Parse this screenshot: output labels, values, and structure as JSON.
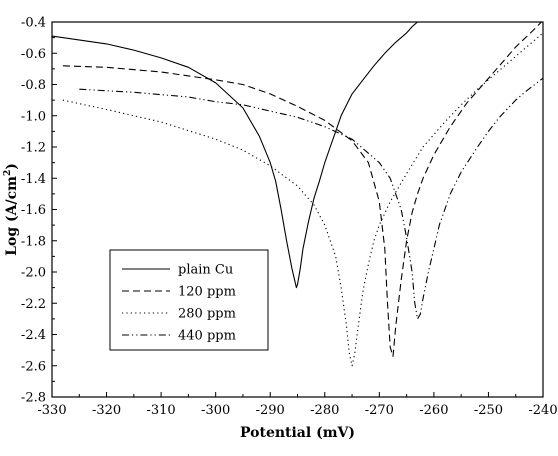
{
  "chart_data": {
    "type": "line",
    "title": "",
    "xlabel": "Potential (mV)",
    "ylabel": "Log (A/cm",
    "ylabel_sup": "2",
    "ylabel_close": ")",
    "xlim": [
      -330,
      -240
    ],
    "ylim": [
      -2.8,
      -0.4
    ],
    "x_ticks": [
      -330,
      -320,
      -310,
      -300,
      -290,
      -280,
      -270,
      -260,
      -250,
      -240
    ],
    "y_ticks": [
      -0.4,
      -0.6,
      -0.8,
      -1.0,
      -1.2,
      -1.4,
      -1.6,
      -1.8,
      -2.0,
      -2.2,
      -2.4,
      -2.6,
      -2.8
    ],
    "x_tick_labels": [
      "-330",
      "-320",
      "-310",
      "-300",
      "-290",
      "-280",
      "-270",
      "-260",
      "-250",
      "-240"
    ],
    "y_tick_labels": [
      "-0.4",
      "-0.6",
      "-0.8",
      "-1.0",
      "-1.2",
      "-1.4",
      "-1.6",
      "-1.8",
      "-2.0",
      "-2.2",
      "-2.4",
      "-2.6",
      "-2.8"
    ],
    "grid": false,
    "legend_position": "bottom-left",
    "series": [
      {
        "name": "plain Cu",
        "dash": "solid",
        "x": [
          -330,
          -320,
          -315,
          -310,
          -305,
          -300,
          -295,
          -292,
          -290,
          -289,
          -288,
          -287,
          -286,
          -285.2,
          -285,
          -284.5,
          -284,
          -283,
          -282,
          -281,
          -280,
          -279,
          -278,
          -277,
          -276,
          -275,
          -273,
          -271,
          -269,
          -267,
          -265,
          -264,
          -263,
          -262
        ],
        "y": [
          -0.49,
          -0.54,
          -0.58,
          -0.63,
          -0.69,
          -0.79,
          -0.95,
          -1.13,
          -1.3,
          -1.42,
          -1.6,
          -1.8,
          -1.98,
          -2.1,
          -2.08,
          -1.98,
          -1.85,
          -1.68,
          -1.53,
          -1.42,
          -1.3,
          -1.2,
          -1.1,
          -1.0,
          -0.93,
          -0.86,
          -0.77,
          -0.68,
          -0.6,
          -0.53,
          -0.47,
          -0.43,
          -0.4,
          -0.38
        ]
      },
      {
        "name": "120 ppm",
        "dash": "dashed",
        "x": [
          -328,
          -320,
          -310,
          -300,
          -295,
          -290,
          -285,
          -280,
          -275,
          -272,
          -270,
          -269,
          -268.5,
          -268,
          -267.5,
          -267,
          -266,
          -265,
          -264,
          -263,
          -262,
          -260,
          -257,
          -254,
          -251,
          -248,
          -245,
          -242,
          -240
        ],
        "y": [
          -0.68,
          -0.69,
          -0.72,
          -0.77,
          -0.8,
          -0.86,
          -0.94,
          -1.03,
          -1.16,
          -1.3,
          -1.55,
          -1.85,
          -2.2,
          -2.48,
          -2.54,
          -2.35,
          -2.05,
          -1.8,
          -1.62,
          -1.5,
          -1.4,
          -1.25,
          -1.07,
          -0.92,
          -0.8,
          -0.68,
          -0.56,
          -0.46,
          -0.39
        ]
      },
      {
        "name": "280 ppm",
        "dash": "dotted",
        "x": [
          -328,
          -320,
          -310,
          -300,
          -295,
          -290,
          -285,
          -282,
          -280,
          -278,
          -277,
          -276,
          -275.5,
          -275,
          -274.5,
          -274,
          -273,
          -272,
          -271,
          -270,
          -268,
          -265,
          -262,
          -258,
          -255,
          -252,
          -248,
          -245,
          -242,
          -240
        ],
        "y": [
          -0.9,
          -0.96,
          -1.04,
          -1.15,
          -1.22,
          -1.32,
          -1.45,
          -1.57,
          -1.7,
          -1.9,
          -2.1,
          -2.35,
          -2.52,
          -2.6,
          -2.52,
          -2.38,
          -2.12,
          -1.95,
          -1.8,
          -1.7,
          -1.55,
          -1.37,
          -1.2,
          -1.04,
          -0.93,
          -0.83,
          -0.71,
          -0.62,
          -0.53,
          -0.47
        ]
      },
      {
        "name": "440 ppm",
        "dash": "dash-dot-dot",
        "x": [
          -325,
          -315,
          -305,
          -300,
          -295,
          -290,
          -285,
          -280,
          -275,
          -270,
          -268,
          -266,
          -265,
          -264,
          -263.5,
          -263,
          -262.5,
          -262,
          -261,
          -260,
          -259,
          -257,
          -255,
          -252,
          -250,
          -248,
          -245,
          -243,
          -240
        ],
        "y": [
          -0.83,
          -0.85,
          -0.88,
          -0.91,
          -0.93,
          -0.97,
          -1.01,
          -1.07,
          -1.15,
          -1.3,
          -1.4,
          -1.6,
          -1.78,
          -2.0,
          -2.2,
          -2.3,
          -2.27,
          -2.17,
          -2.0,
          -1.85,
          -1.7,
          -1.5,
          -1.36,
          -1.2,
          -1.1,
          -1.01,
          -0.9,
          -0.84,
          -0.76
        ]
      }
    ]
  }
}
